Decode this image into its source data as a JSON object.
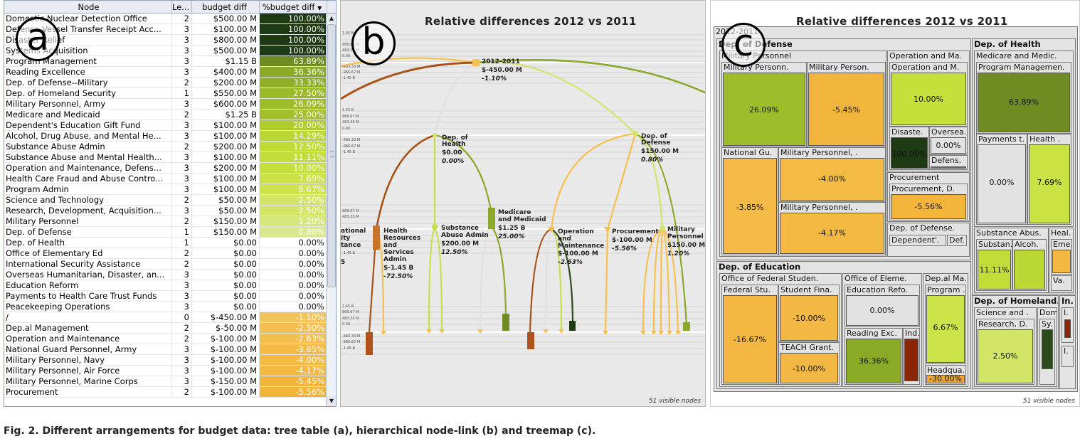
{
  "table": {
    "headers": {
      "node": "Node",
      "level": "Le...",
      "budget": "budget diff",
      "pct": "%budget diff"
    },
    "sort_indicator": "▼",
    "rows": [
      {
        "node": "Domestic Nuclear Detection Office",
        "level": "2",
        "budget": "$500.00 M",
        "pct": "100.00%",
        "color": "#1d3a12"
      },
      {
        "node": "Defense Vessel Transfer Receipt Acc...",
        "level": "3",
        "budget": "$100.00 M",
        "pct": "100.00%",
        "color": "#1d3a12"
      },
      {
        "node": "Disaster Relief",
        "level": "3",
        "budget": "$800.00 M",
        "pct": "100.00%",
        "color": "#1d3a12"
      },
      {
        "node": "Systems Acquisition",
        "level": "3",
        "budget": "$500.00 M",
        "pct": "100.00%",
        "color": "#1d3a12"
      },
      {
        "node": "Program Management",
        "level": "3",
        "budget": "$1.15 B",
        "pct": "63.89%",
        "color": "#6e8c22"
      },
      {
        "node": "Reading Excellence",
        "level": "3",
        "budget": "$400.00 M",
        "pct": "36.36%",
        "color": "#8aaa26"
      },
      {
        "node": "Dep. of Defense--Military",
        "level": "2",
        "budget": "$200.00 M",
        "pct": "33.33%",
        "color": "#8faf28"
      },
      {
        "node": "Dep. of Homeland Security",
        "level": "1",
        "budget": "$550.00 M",
        "pct": "27.50%",
        "color": "#9cb92a"
      },
      {
        "node": "Military Personnel, Army",
        "level": "3",
        "budget": "$600.00 M",
        "pct": "26.09%",
        "color": "#9fbc2b"
      },
      {
        "node": "Medicare and Medicaid",
        "level": "2",
        "budget": "$1.25 B",
        "pct": "25.00%",
        "color": "#a3c02c"
      },
      {
        "node": "Dependent's Education Gift Fund",
        "level": "3",
        "budget": "$100.00 M",
        "pct": "20.00%",
        "color": "#b0cd2e"
      },
      {
        "node": "Alcohol, Drug Abuse, and Mental He...",
        "level": "3",
        "budget": "$100.00 M",
        "pct": "14.29%",
        "color": "#bad733"
      },
      {
        "node": "Substance Abuse Admin",
        "level": "2",
        "budget": "$200.00 M",
        "pct": "12.50%",
        "color": "#bfdb36"
      },
      {
        "node": "Substance Abuse and Mental Health...",
        "level": "3",
        "budget": "$100.00 M",
        "pct": "11.11%",
        "color": "#c2dd38"
      },
      {
        "node": "Operation and Maintenance, Defens...",
        "level": "3",
        "budget": "$200.00 M",
        "pct": "10.00%",
        "color": "#c5df3b"
      },
      {
        "node": "Health Care Fraud and Abuse Contro...",
        "level": "3",
        "budget": "$100.00 M",
        "pct": "7.69%",
        "color": "#cae244"
      },
      {
        "node": "Program Admin",
        "level": "3",
        "budget": "$100.00 M",
        "pct": "6.67%",
        "color": "#cce34a"
      },
      {
        "node": "Science and Technology",
        "level": "2",
        "budget": "$50.00 M",
        "pct": "2.50%",
        "color": "#d2e566"
      },
      {
        "node": "Research, Development, Acquisition...",
        "level": "3",
        "budget": "$50.00 M",
        "pct": "2.50%",
        "color": "#d2e566"
      },
      {
        "node": "Military Personnel",
        "level": "2",
        "budget": "$150.00 M",
        "pct": "1.20%",
        "color": "#d6e77c"
      },
      {
        "node": "Dep. of Defense",
        "level": "1",
        "budget": "$150.00 M",
        "pct": "0.80%",
        "color": "#d9e88c"
      },
      {
        "node": "Dep. of Health",
        "level": "1",
        "budget": "$0.00",
        "pct": "0.00%",
        "color": "#e2e2e2"
      },
      {
        "node": "Office of Elementary Ed",
        "level": "2",
        "budget": "$0.00",
        "pct": "0.00%",
        "color": "#e2e2e2"
      },
      {
        "node": "International Security Assistance",
        "level": "2",
        "budget": "$0.00",
        "pct": "0.00%",
        "color": "#e2e2e2"
      },
      {
        "node": "Overseas Humanitarian, Disaster, an...",
        "level": "3",
        "budget": "$0.00",
        "pct": "0.00%",
        "color": "#e2e2e2"
      },
      {
        "node": "Education Reform",
        "level": "3",
        "budget": "$0.00",
        "pct": "0.00%",
        "color": "#e2e2e2"
      },
      {
        "node": "Payments to Health Care Trust Funds",
        "level": "3",
        "budget": "$0.00",
        "pct": "0.00%",
        "color": "#e2e2e2"
      },
      {
        "node": "Peacekeeping Operations",
        "level": "3",
        "budget": "$0.00",
        "pct": "0.00%",
        "color": "#e2e2e2"
      },
      {
        "node": "/",
        "level": "0",
        "budget": "$-450.00 M",
        "pct": "-1.10%",
        "color": "#f4c25a"
      },
      {
        "node": "Dep.al Management",
        "level": "2",
        "budget": "$-50.00 M",
        "pct": "-2.50%",
        "color": "#f4bf50"
      },
      {
        "node": "Operation and Maintenance",
        "level": "2",
        "budget": "$-100.00 M",
        "pct": "-2.63%",
        "color": "#f4be4e"
      },
      {
        "node": "National Guard Personnel, Army",
        "level": "3",
        "budget": "$-100.00 M",
        "pct": "-3.85%",
        "color": "#f3ba45"
      },
      {
        "node": "Military Personnel, Navy",
        "level": "3",
        "budget": "$-100.00 M",
        "pct": "-4.00%",
        "color": "#f3ba44"
      },
      {
        "node": "Military Personnel, Air Force",
        "level": "3",
        "budget": "$-100.00 M",
        "pct": "-4.17%",
        "color": "#f3b943"
      },
      {
        "node": "Military Personnel, Marine Corps",
        "level": "3",
        "budget": "$-150.00 M",
        "pct": "-5.45%",
        "color": "#f2b53b"
      },
      {
        "node": "Procurement",
        "level": "2",
        "budget": "$-100.00 M",
        "pct": "-5.56%",
        "color": "#f2b53a"
      }
    ]
  },
  "letters": {
    "a": "a",
    "b": "b",
    "c": "c"
  },
  "panel_b": {
    "title": "Relative differences 2012 vs 2011",
    "visible_nodes": "51 visible nodes",
    "axis_ticks": [
      "1.45 B",
      "966.67 M",
      "483.33 M",
      "0.00",
      "-483.33 M",
      "-966.67 M",
      "-1.45 B"
    ],
    "labels": {
      "root_name": "2012-2011",
      "root_val": "$-450.00 M",
      "root_pct": "-1.10%",
      "health_name1": "Dep. of",
      "health_name2": "Health",
      "health_val": "$0.00",
      "health_pct": "0.00%",
      "defense_name1": "Dep. of",
      "defense_name2": "Defense",
      "defense_val": "$150.00 M",
      "defense_pct": "0.80%",
      "hrsa_name1": "Health",
      "hrsa_name2": "Resources",
      "hrsa_name3": "and",
      "hrsa_name4": "Services",
      "hrsa_name5": "Admin",
      "hrsa_val": "$-1.45 B",
      "hrsa_pct": "-72.50%",
      "samhsa_name1": "Substance",
      "samhsa_name2": "Abuse Admin",
      "samhsa_val": "$200.00 M",
      "samhsa_pct": "12.50%",
      "medicare_name1": "Medicare",
      "medicare_name2": "and Medicaid",
      "medicare_val": "$1.25 B",
      "medicare_pct": "25.00%",
      "om_name1": "Operation",
      "om_name2": "and",
      "om_name3": "Maintenance",
      "om_val": "$-100.00 M",
      "om_pct": "-2.63%",
      "proc_name": "Procurement",
      "proc_val": "$-100.00 M",
      "proc_pct": "-5.56%",
      "mil_name1": "Military",
      "mil_name2": "Personnel",
      "mil_val": "$150.00 M",
      "mil_pct": "1.20%",
      "left_cut1": "ational",
      "left_cut2": "ity",
      "left_cut3": "tance",
      "left_cut4": "5"
    }
  },
  "panel_c": {
    "title": "Relative differences 2012 vs 2011",
    "visible_nodes": "51 visible nodes",
    "root": "2012-2011",
    "defense": "Dep. of Defense",
    "mil_personnel": "Military Personnel",
    "mil_pers_a": "Military Personn.",
    "mil_pers_a_val": "26.09%",
    "mil_pers_b": "Military Person.",
    "mil_pers_b_val": "-5.45%",
    "natl_gu": "National Gu.",
    "natl_gu_val": "-3.85%",
    "mil_pers_c": "Military Personnel, .",
    "mil_pers_c_val": "-4.00%",
    "mil_pers_d": "Military Personnel, .",
    "mil_pers_d_val": "-4.17%",
    "om": "Operation and Ma.",
    "om_sub": "Operation and M.",
    "om_val": "10.00%",
    "disaste": "Disaste.",
    "disaste_val": "100.00%",
    "oversea": "Oversea.",
    "oversea_val": "0.00%",
    "defens_small": "Defens.",
    "procurement": "Procurement",
    "procurement_d": "Procurement, D.",
    "procurement_val": "-5.56%",
    "dep_def": "Dep. of Defense.",
    "dependent": "Dependent'.",
    "def_small": "Def.",
    "health": "Dep. of Health",
    "medicare": "Medicare and Medic.",
    "progmgmt": "Program Managemen.",
    "progmgmt_val": "63.89%",
    "payments": "Payments t.",
    "payments_val": "0.00%",
    "health_sub": "Health .",
    "health_sub_val": "7.69%",
    "subst": "Substance Abus.",
    "heal_small": "Heal.",
    "substan": "Substan.",
    "alcoh": "Alcoh.",
    "subst_val": "11.11%",
    "eme": "Eme.",
    "va": "Va.",
    "education": "Dep. of Education",
    "fed_stud": "Office of Federal Studen.",
    "fed_stu": "Federal Stu.",
    "fed_stu_val": "-16.67%",
    "student_fina": "Student Fina.",
    "student_fina_val": "-10.00%",
    "teach": "TEACH Grant.",
    "teach_val": "-10.00%",
    "elem": "Office of Eleme.",
    "edu_reform": "Education Refo.",
    "edu_reform_val": "0.00%",
    "reading": "Reading Exc.",
    "reading_val": "36.36%",
    "ind": "Ind.",
    "depal": "Dep.al Ma.",
    "program": "Program .",
    "program_val": "6.67%",
    "headqua": "Headqua.",
    "headqua_val": "-30.00%",
    "homeland": "Dep. of Homeland.",
    "in_small": "In.",
    "science": "Science and .",
    "research": "Research, D.",
    "research_val": "2.50%",
    "dom": "Dom.",
    "sy": "Sy.",
    "i1": "I.",
    "i2": "I."
  },
  "caption": "Fig. 2. Different arrangements for budget data: tree table (a), hierarchical node-link (b) and treemap (c)."
}
